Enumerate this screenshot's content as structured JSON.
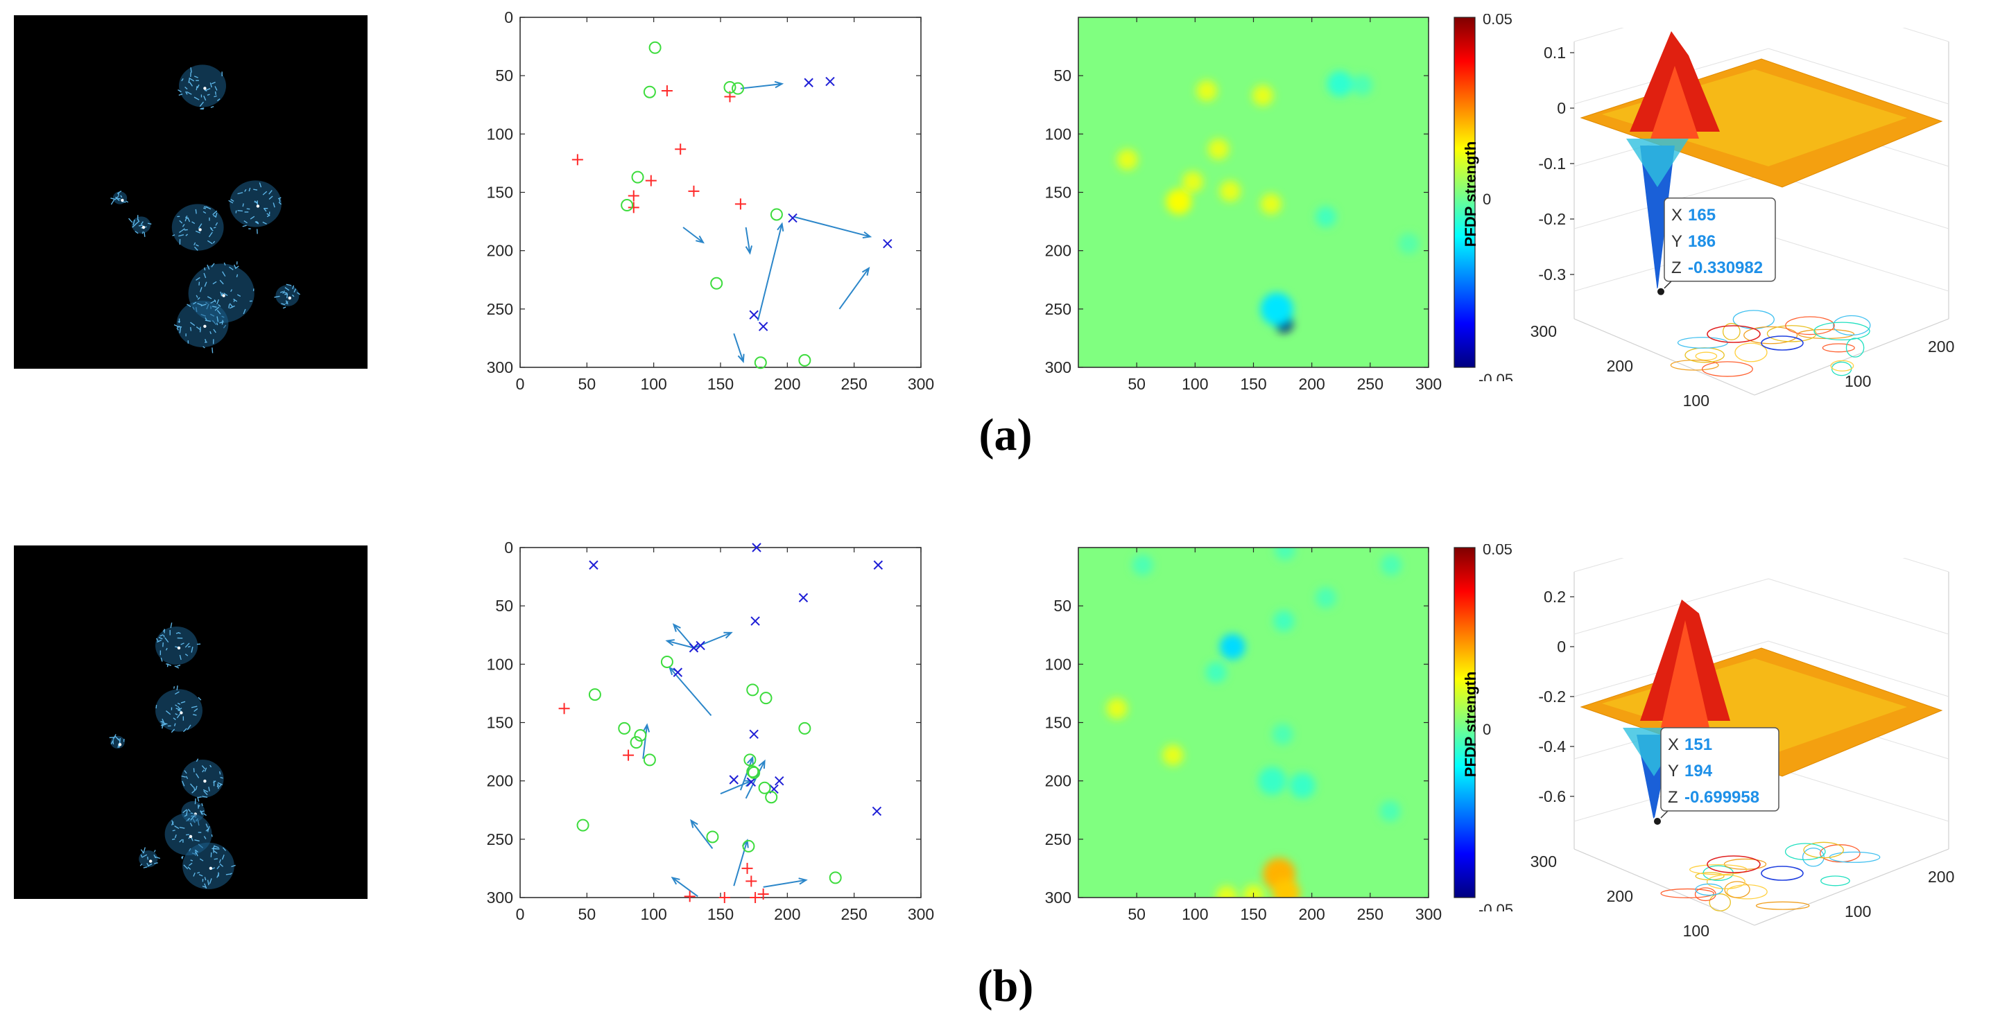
{
  "chart_data": [
    {
      "panel": "a",
      "label": "(a)",
      "flow_field": {
        "type": "other",
        "blobs": [
          {
            "x": 160,
            "y": 60,
            "r": 20
          },
          {
            "x": 90,
            "y": 155,
            "r": 6
          },
          {
            "x": 108,
            "y": 178,
            "r": 8
          },
          {
            "x": 156,
            "y": 180,
            "r": 22
          },
          {
            "x": 205,
            "y": 160,
            "r": 22
          },
          {
            "x": 176,
            "y": 236,
            "r": 28
          },
          {
            "x": 232,
            "y": 238,
            "r": 10
          },
          {
            "x": 160,
            "y": 262,
            "r": 22
          }
        ]
      },
      "scatter": {
        "type": "scatter",
        "xlim": [
          0,
          300
        ],
        "ylim": [
          0,
          300
        ],
        "xticks": [
          "0",
          "50",
          "100",
          "150",
          "200",
          "250",
          "300"
        ],
        "yticks": [
          "0",
          "50",
          "100",
          "150",
          "200",
          "250",
          "300"
        ],
        "pos": [
          [
            110,
            63
          ],
          [
            43,
            122
          ],
          [
            120,
            113
          ],
          [
            98,
            140
          ],
          [
            130,
            149
          ],
          [
            85,
            153
          ],
          [
            85,
            163
          ],
          [
            165,
            160
          ],
          [
            157,
            68
          ]
        ],
        "neg": [
          [
            216,
            56
          ],
          [
            232,
            55
          ],
          [
            204,
            172
          ],
          [
            275,
            194
          ],
          [
            175,
            255
          ],
          [
            182,
            265
          ]
        ],
        "zero": [
          [
            101,
            26
          ],
          [
            97,
            64
          ],
          [
            157,
            60
          ],
          [
            163,
            61
          ],
          [
            88,
            137
          ],
          [
            80,
            161
          ],
          [
            192,
            169
          ],
          [
            147,
            228
          ],
          [
            180,
            296
          ],
          [
            213,
            294
          ]
        ],
        "arrows": [
          [
            165,
            61,
            196,
            57
          ],
          [
            122,
            180,
            137,
            193
          ],
          [
            169,
            180,
            172,
            202
          ],
          [
            178,
            260,
            196,
            177
          ],
          [
            205,
            171,
            262,
            188
          ],
          [
            239,
            250,
            261,
            215
          ],
          [
            160,
            271,
            167,
            295
          ]
        ]
      },
      "heatmap": {
        "type": "heatmap",
        "xlim": [
          0,
          300
        ],
        "ylim": [
          0,
          300
        ],
        "xticks": [
          "50",
          "100",
          "150",
          "200",
          "250",
          "300"
        ],
        "yticks": [
          "50",
          "100",
          "150",
          "200",
          "250",
          "300"
        ],
        "colorbar": {
          "label": "PFDP strength",
          "ticks": [
            "0.05",
            "0",
            "-0.05"
          ],
          "range": [
            -0.05,
            0.05
          ]
        },
        "spots": [
          {
            "x": 224,
            "y": 57,
            "v": -0.008,
            "r": 11
          },
          {
            "x": 243,
            "y": 58,
            "v": -0.005,
            "r": 9
          },
          {
            "x": 176,
            "y": 262,
            "v": -0.05,
            "r": 8
          },
          {
            "x": 170,
            "y": 250,
            "v": -0.015,
            "r": 14
          },
          {
            "x": 212,
            "y": 171,
            "v": -0.006,
            "r": 9
          },
          {
            "x": 283,
            "y": 194,
            "v": -0.004,
            "r": 9
          },
          {
            "x": 110,
            "y": 63,
            "v": 0.01,
            "r": 9
          },
          {
            "x": 42,
            "y": 122,
            "v": 0.01,
            "r": 9
          },
          {
            "x": 120,
            "y": 113,
            "v": 0.01,
            "r": 9
          },
          {
            "x": 98,
            "y": 141,
            "v": 0.01,
            "r": 9
          },
          {
            "x": 130,
            "y": 149,
            "v": 0.01,
            "r": 9
          },
          {
            "x": 86,
            "y": 158,
            "v": 0.012,
            "r": 11
          },
          {
            "x": 165,
            "y": 160,
            "v": 0.01,
            "r": 9
          },
          {
            "x": 158,
            "y": 67,
            "v": 0.01,
            "r": 9
          }
        ]
      },
      "surface": {
        "type": "area",
        "zticks": [
          "0.1",
          "0",
          "-0.1",
          "-0.2",
          "-0.3"
        ],
        "zlim": [
          -0.33,
          0.12
        ],
        "left_ticks": [
          "300",
          "200",
          "100"
        ],
        "right_ticks": [
          "200",
          "100"
        ],
        "datatip": {
          "X": "165",
          "Y": "186",
          "Z": "-0.330982"
        }
      }
    },
    {
      "panel": "b",
      "label": "(b)",
      "flow_field": {
        "type": "other",
        "blobs": [
          {
            "x": 138,
            "y": 85,
            "r": 18
          },
          {
            "x": 140,
            "y": 140,
            "r": 20
          },
          {
            "x": 88,
            "y": 167,
            "r": 6
          },
          {
            "x": 160,
            "y": 198,
            "r": 18
          },
          {
            "x": 152,
            "y": 226,
            "r": 10
          },
          {
            "x": 148,
            "y": 245,
            "r": 20
          },
          {
            "x": 114,
            "y": 266,
            "r": 8
          },
          {
            "x": 165,
            "y": 272,
            "r": 22
          }
        ]
      },
      "scatter": {
        "type": "scatter",
        "xlim": [
          0,
          300
        ],
        "ylim": [
          0,
          300
        ],
        "xticks": [
          "0",
          "50",
          "100",
          "150",
          "200",
          "250",
          "300"
        ],
        "yticks": [
          "0",
          "50",
          "100",
          "150",
          "200",
          "250",
          "300"
        ],
        "pos": [
          [
            33,
            138
          ],
          [
            81,
            178
          ],
          [
            170,
            275
          ],
          [
            173,
            286
          ],
          [
            182,
            297
          ],
          [
            127,
            299
          ],
          [
            153,
            300
          ],
          [
            176,
            300
          ]
        ],
        "neg": [
          [
            55,
            15
          ],
          [
            177,
            0
          ],
          [
            268,
            15
          ],
          [
            212,
            43
          ],
          [
            176,
            63
          ],
          [
            130,
            86
          ],
          [
            135,
            84
          ],
          [
            118,
            107
          ],
          [
            175,
            160
          ],
          [
            160,
            199
          ],
          [
            173,
            201
          ],
          [
            194,
            200
          ],
          [
            190,
            207
          ],
          [
            267,
            226
          ]
        ],
        "zero": [
          [
            110,
            98
          ],
          [
            56,
            126
          ],
          [
            174,
            122
          ],
          [
            184,
            129
          ],
          [
            78,
            155
          ],
          [
            90,
            161
          ],
          [
            87,
            167
          ],
          [
            97,
            182
          ],
          [
            213,
            155
          ],
          [
            172,
            182
          ],
          [
            174,
            192
          ],
          [
            175,
            193
          ],
          [
            183,
            206
          ],
          [
            188,
            214
          ],
          [
            47,
            238
          ],
          [
            144,
            248
          ],
          [
            171,
            256
          ],
          [
            236,
            283
          ]
        ],
        "arrows": [
          [
            130,
            86,
            115,
            66
          ],
          [
            130,
            86,
            110,
            80
          ],
          [
            130,
            86,
            158,
            73
          ],
          [
            143,
            144,
            112,
            103
          ],
          [
            92,
            181,
            95,
            152
          ],
          [
            169,
            215,
            183,
            183
          ],
          [
            165,
            208,
            174,
            180
          ],
          [
            150,
            211,
            173,
            200
          ],
          [
            160,
            290,
            170,
            251
          ],
          [
            144,
            258,
            128,
            234
          ],
          [
            182,
            291,
            214,
            285
          ],
          [
            133,
            299,
            114,
            283
          ]
        ]
      },
      "heatmap": {
        "type": "heatmap",
        "xlim": [
          0,
          300
        ],
        "ylim": [
          0,
          300
        ],
        "xticks": [
          "50",
          "100",
          "150",
          "200",
          "250",
          "300"
        ],
        "yticks": [
          "50",
          "100",
          "150",
          "200",
          "250",
          "300"
        ],
        "colorbar": {
          "label": "PFDP strength",
          "ticks": [
            "0.05",
            "0",
            "-0.05"
          ],
          "range": [
            -0.05,
            0.05
          ]
        },
        "spots": [
          {
            "x": 55,
            "y": 15,
            "v": -0.005,
            "r": 9
          },
          {
            "x": 177,
            "y": 2,
            "v": -0.005,
            "r": 9
          },
          {
            "x": 268,
            "y": 15,
            "v": -0.005,
            "r": 9
          },
          {
            "x": 212,
            "y": 43,
            "v": -0.005,
            "r": 9
          },
          {
            "x": 176,
            "y": 63,
            "v": -0.006,
            "r": 9
          },
          {
            "x": 132,
            "y": 85,
            "v": -0.016,
            "r": 11
          },
          {
            "x": 118,
            "y": 107,
            "v": -0.006,
            "r": 9
          },
          {
            "x": 175,
            "y": 160,
            "v": -0.005,
            "r": 9
          },
          {
            "x": 166,
            "y": 200,
            "v": -0.007,
            "r": 12
          },
          {
            "x": 192,
            "y": 204,
            "v": -0.007,
            "r": 11
          },
          {
            "x": 267,
            "y": 226,
            "v": -0.005,
            "r": 9
          },
          {
            "x": 33,
            "y": 138,
            "v": 0.01,
            "r": 9
          },
          {
            "x": 81,
            "y": 178,
            "v": 0.01,
            "r": 9
          },
          {
            "x": 172,
            "y": 280,
            "v": 0.02,
            "r": 14
          },
          {
            "x": 178,
            "y": 296,
            "v": 0.018,
            "r": 12
          },
          {
            "x": 150,
            "y": 298,
            "v": 0.01,
            "r": 9
          },
          {
            "x": 127,
            "y": 299,
            "v": 0.01,
            "r": 9
          }
        ]
      },
      "surface": {
        "type": "area",
        "zticks": [
          "0.2",
          "0",
          "-0.2",
          "-0.4",
          "-0.6"
        ],
        "zlim": [
          -0.7,
          0.3
        ],
        "left_ticks": [
          "300",
          "200",
          "100"
        ],
        "right_ticks": [
          "200",
          "100"
        ],
        "datatip": {
          "X": "151",
          "Y": "194",
          "Z": "-0.699958"
        }
      }
    }
  ]
}
